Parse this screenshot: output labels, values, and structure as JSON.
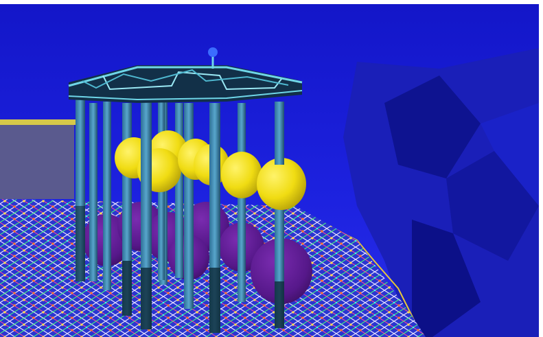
{
  "scene": {
    "subject": "3D render",
    "colors": {
      "background_wall": "#1a1fd6",
      "background_dark": "#0c1190",
      "floor_base": "#2b3dd8",
      "pole": "#3f8fb8",
      "pole_dark": "#0e2a3a",
      "yellow_sphere": "#f4e21a",
      "purple_sphere": "#5c1a8c",
      "frame": "#6fd6e8",
      "grey_panel": "#5a5a8e",
      "top_ball": "#3b6cff"
    },
    "counts": {
      "yellow_spheres": 7,
      "purple_spheres": 7,
      "poles": 12
    }
  }
}
